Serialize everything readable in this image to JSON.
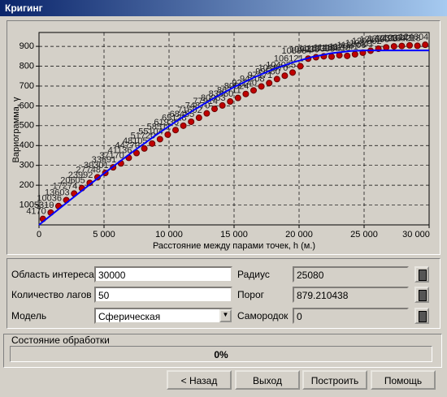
{
  "window": {
    "title": "Кригинг"
  },
  "chart_data": {
    "type": "scatter",
    "y_label": "Вариограмма, γ",
    "x_label": "Расстояние между парами точек, h (м.)",
    "xlim": [
      0,
      30000
    ],
    "ylim": [
      0,
      970
    ],
    "xticks": [
      0,
      {
        "value": 5000,
        "label": "5 000"
      },
      {
        "value": 10000,
        "label": "10 000"
      },
      {
        "value": 15000,
        "label": "15 000"
      },
      {
        "value": 20000,
        "label": "20 000"
      },
      {
        "value": 25000,
        "label": "25 000"
      },
      {
        "value": 30000,
        "label": "30 000"
      }
    ],
    "yticks": [
      100,
      200,
      300,
      400,
      500,
      600,
      700,
      800,
      900
    ],
    "grid": true,
    "series": [
      {
        "color": "#c00000",
        "x": [
          300,
          900,
          1500,
          2100,
          2700,
          3300,
          3900,
          4500,
          5100,
          5700,
          6300,
          6900,
          7500,
          8100,
          8700,
          9300,
          9900,
          10500,
          11100,
          11700,
          12300,
          12900,
          13500,
          14100,
          14700,
          15300,
          15900,
          16500,
          17100,
          17700,
          18300,
          18900,
          19500,
          20100,
          20700,
          21300,
          21900,
          22500,
          23100,
          23700,
          24300,
          24900,
          25500,
          26100,
          26700,
          27300,
          27900,
          28500,
          29100,
          29700
        ],
        "values": [
          30,
          62,
          95,
          125,
          158,
          185,
          212,
          240,
          262,
          290,
          310,
          338,
          362,
          385,
          410,
          432,
          455,
          478,
          500,
          520,
          540,
          562,
          585,
          602,
          622,
          640,
          660,
          678,
          698,
          715,
          735,
          752,
          768,
          800,
          838,
          845,
          850,
          848,
          855,
          852,
          860,
          868,
          878,
          888,
          895,
          900,
          902,
          905,
          903,
          908
        ],
        "point_labels": [
          4170,
          5310,
          10036,
          13603,
          17274,
          20605,
          23992,
          27748,
          30301,
          33691,
          37170,
          41136,
          44770,
          48105,
          51720,
          55104,
          58511,
          61930,
          65128,
          68455,
          71602,
          74870,
          77914,
          80953,
          83860,
          86711,
          89524,
          92140,
          94708,
          97171,
          99580,
          101870,
          104025,
          106121,
          108064,
          109930,
          111672,
          113305,
          114852,
          116210,
          117541,
          118706,
          119811,
          120802,
          121690,
          122493,
          123160,
          123741,
          124218,
          124604
        ]
      },
      {
        "color": "#0000ff",
        "style": "line",
        "x": [
          0,
          1500,
          3000,
          4500,
          6000,
          7500,
          9000,
          10500,
          12000,
          13500,
          15000,
          16500,
          18000,
          19500,
          21000,
          22500,
          24000,
          25080,
          30000
        ],
        "values": [
          0,
          78.8,
          157.0,
          234.0,
          309.5,
          382.7,
          453.0,
          519.9,
          582.9,
          641.3,
          694.7,
          742.4,
          784.0,
          818.8,
          846.3,
          865.8,
          876.8,
          879.2,
          879.2
        ]
      }
    ]
  },
  "form": {
    "left": [
      {
        "label": "Область интереса",
        "value": "30000"
      },
      {
        "label": "Количество лагов",
        "value": "50"
      },
      {
        "label": "Модель",
        "value": "Сферическая"
      }
    ],
    "right": [
      {
        "label": "Радиус",
        "value": "25080"
      },
      {
        "label": "Порог",
        "value": "879.210438"
      },
      {
        "label": "Самородок",
        "value": "0"
      }
    ]
  },
  "status": {
    "title": "Состояние обработки",
    "progress": "0%"
  },
  "buttons": [
    "< Назад",
    "Выход",
    "Построить",
    "Помощь"
  ]
}
